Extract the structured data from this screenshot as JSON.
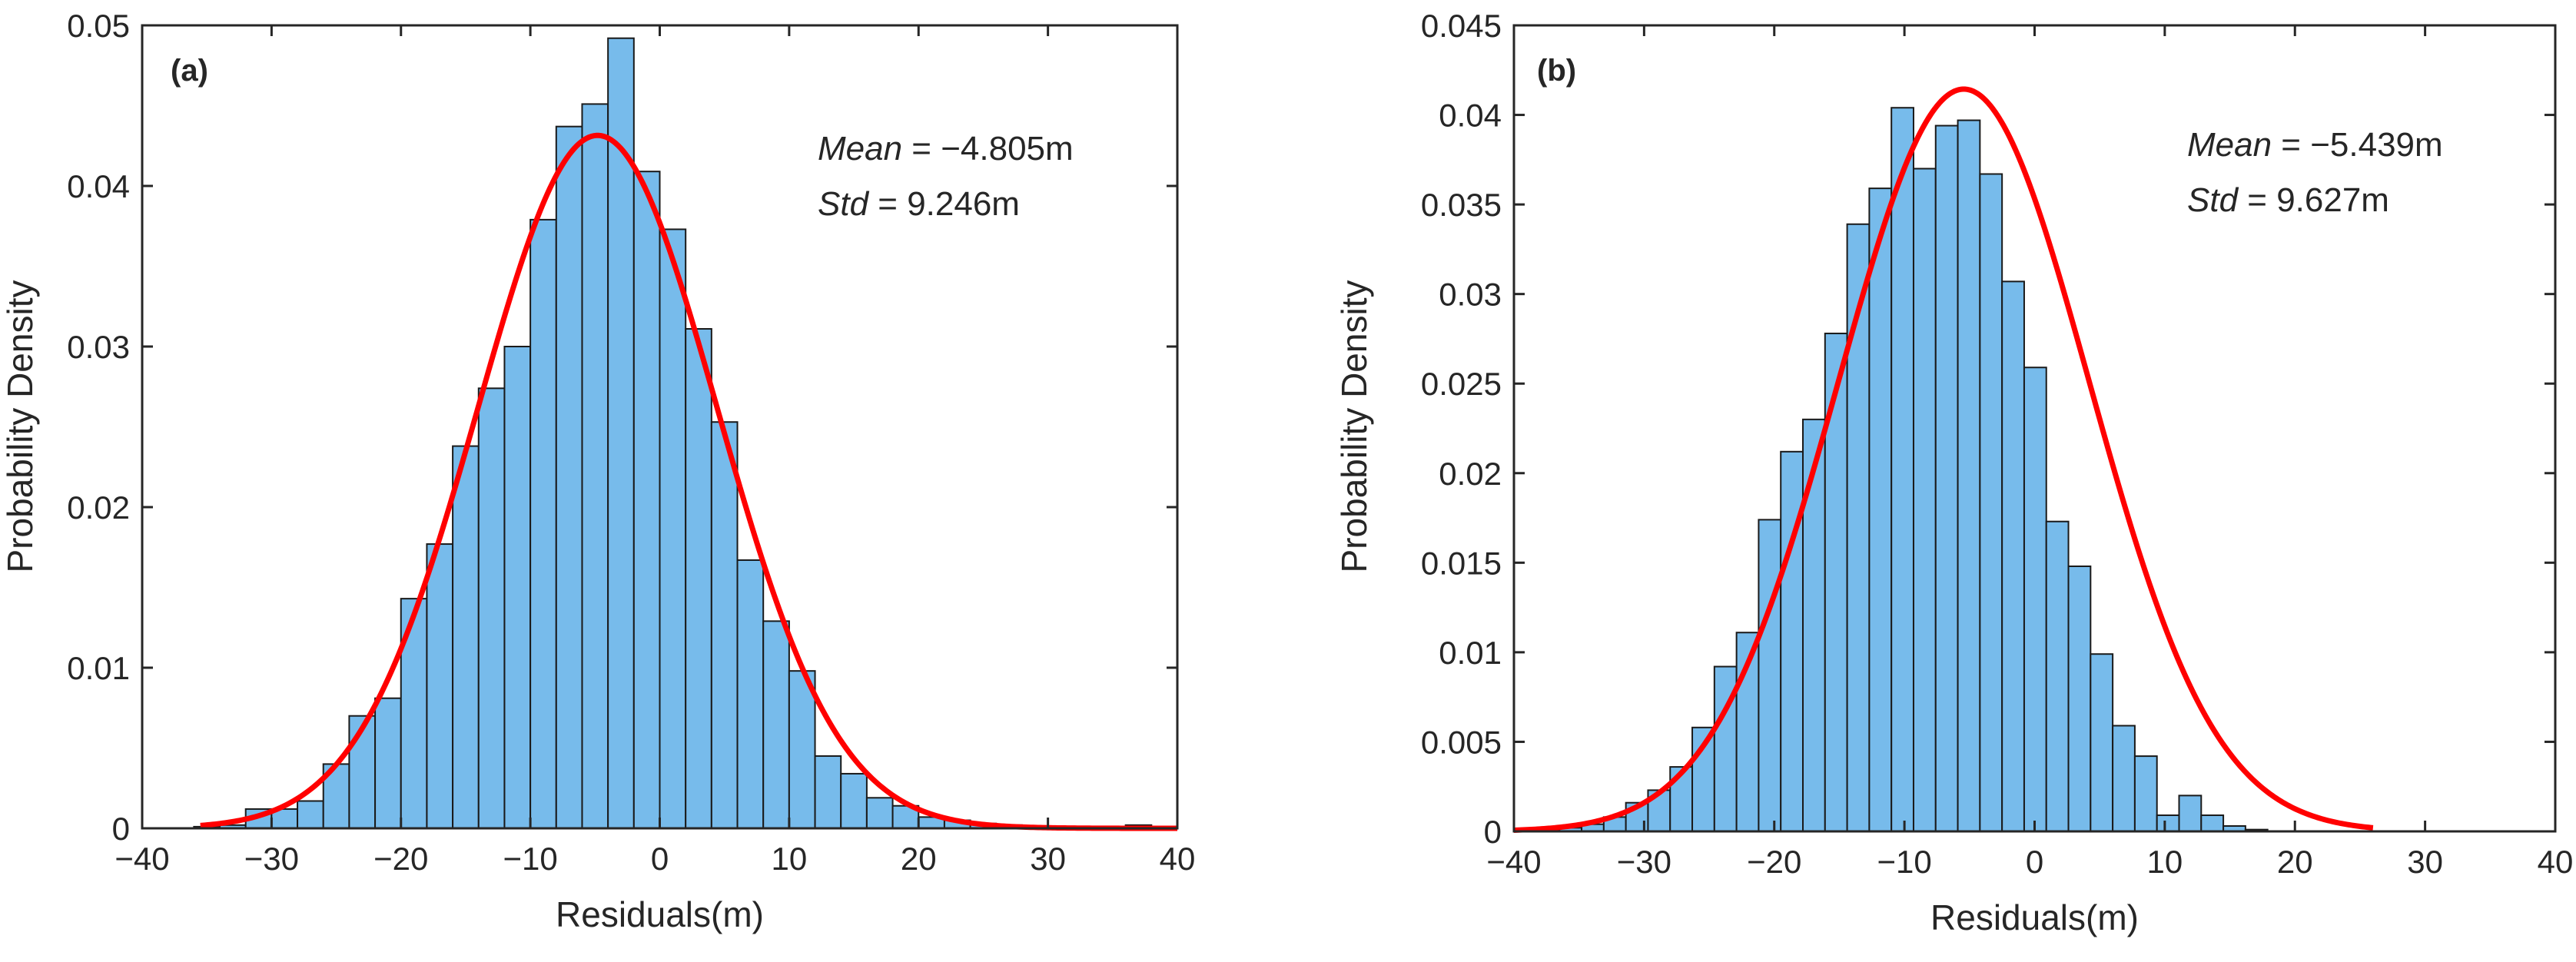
{
  "colors": {
    "bar_fill": "#77bbeb",
    "bar_edge": "#1a1a1a",
    "curve": "#ff0000",
    "axis": "#262626"
  },
  "chart_data": [
    {
      "type": "bar",
      "panel_label": "(a)",
      "xlabel": "Residuals(m)",
      "ylabel": "Probability Density",
      "xlim": [
        -40,
        40
      ],
      "ylim": [
        0,
        0.05
      ],
      "xticks": [
        -40,
        -30,
        -20,
        -10,
        0,
        10,
        20,
        30,
        40
      ],
      "xtick_labels": [
        "−40",
        "−30",
        "−20",
        "−10",
        "0",
        "10",
        "20",
        "30",
        "40"
      ],
      "yticks": [
        0,
        0.01,
        0.02,
        0.03,
        0.04,
        0.05
      ],
      "ytick_labels": [
        "0",
        "0.01",
        "0.02",
        "0.03",
        "0.04",
        "0.05"
      ],
      "bin_width": 2,
      "bin_start": -36,
      "values": [
        0.0001,
        0.0002,
        0.0012,
        0.0012,
        0.0017,
        0.004,
        0.007,
        0.0081,
        0.0143,
        0.0177,
        0.0238,
        0.0274,
        0.03,
        0.0379,
        0.0437,
        0.0451,
        0.0492,
        0.0409,
        0.0373,
        0.0311,
        0.0253,
        0.0167,
        0.0129,
        0.0098,
        0.0045,
        0.0034,
        0.0019,
        0.0014,
        0.0007,
        0.0005,
        0.0003,
        0.0002,
        0.0001,
        0.0001,
        0.0001,
        0.0001,
        0.0002,
        0.0001
      ],
      "fit": {
        "mean": -4.805,
        "std": 9.246,
        "x_range": [
          -35.5,
          40
        ]
      },
      "stats": {
        "mean_label": "Mean",
        "mean_text": " = −4.805m",
        "std_label": "Std",
        "std_text": " = 9.246m"
      }
    },
    {
      "type": "bar",
      "panel_label": "(b)",
      "xlabel": "Residuals(m)",
      "ylabel": "Probability Density",
      "xlim": [
        -40,
        40
      ],
      "ylim": [
        0,
        0.045
      ],
      "xticks": [
        -40,
        -30,
        -20,
        -10,
        0,
        10,
        20,
        30,
        40
      ],
      "xtick_labels": [
        "−40",
        "−30",
        "−20",
        "−10",
        "0",
        "10",
        "20",
        "30",
        "40"
      ],
      "yticks": [
        0,
        0.005,
        0.01,
        0.015,
        0.02,
        0.025,
        0.03,
        0.035,
        0.04,
        0.045
      ],
      "ytick_labels": [
        "0",
        "0.005",
        "0.01",
        "0.015",
        "0.02",
        "0.025",
        "0.03",
        "0.035",
        "0.04",
        "0.045"
      ],
      "bin_width": 1.7,
      "bin_start": -38.2,
      "values": [
        0.0001,
        0.0002,
        0.0004,
        0.0008,
        0.0016,
        0.0023,
        0.0036,
        0.0058,
        0.0092,
        0.0111,
        0.0174,
        0.0212,
        0.023,
        0.0278,
        0.0339,
        0.0359,
        0.0404,
        0.037,
        0.0394,
        0.0397,
        0.0367,
        0.0307,
        0.0259,
        0.0173,
        0.0148,
        0.0099,
        0.0059,
        0.0042,
        0.0009,
        0.002,
        0.0009,
        0.0003,
        0.0001
      ],
      "fit": {
        "mean": -5.439,
        "std": 9.627,
        "x_range": [
          -40,
          26
        ]
      },
      "stats": {
        "mean_label": "Mean",
        "mean_text": " = −5.439m",
        "std_label": "Std",
        "std_text": " = 9.627m"
      }
    }
  ]
}
